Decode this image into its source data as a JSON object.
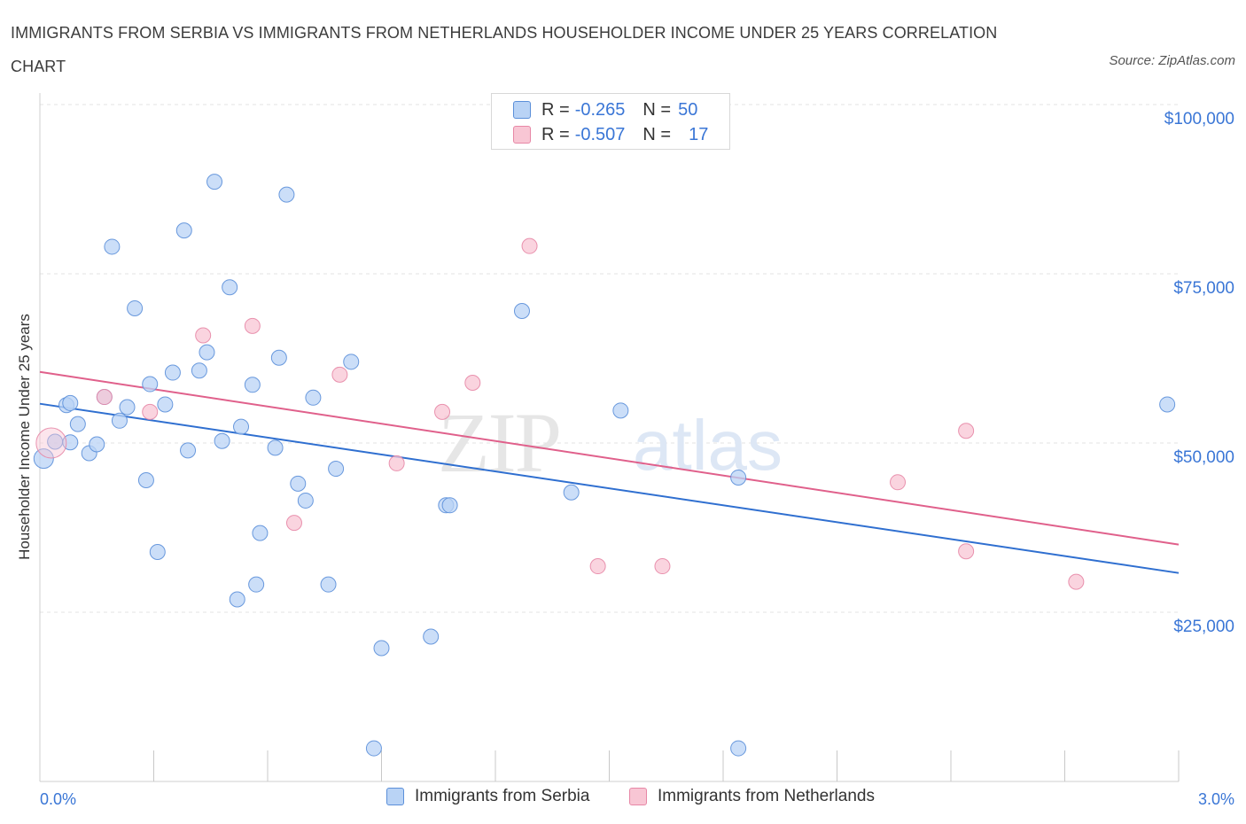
{
  "title": "IMMIGRANTS FROM SERBIA VS IMMIGRANTS FROM NETHERLANDS HOUSEHOLDER INCOME UNDER 25 YEARS CORRELATION CHART",
  "source": "Source: ZipAtlas.com",
  "watermark": {
    "zip": "ZIP",
    "atlas": "atlas"
  },
  "legend": {
    "r_label": "R =",
    "n_label": "N =",
    "serbia": {
      "r": "-0.265",
      "n": "50"
    },
    "netherlands": {
      "r": "-0.507",
      "n": "17"
    }
  },
  "colors": {
    "serbia_fill": "#b9d3f5",
    "serbia_stroke": "#5b8fd9",
    "serbia_line": "#2f6fd0",
    "netherlands_fill": "#f8c6d4",
    "netherlands_stroke": "#e787a6",
    "netherlands_line": "#e0608b",
    "tick_label": "#3a76d6"
  },
  "chart_data": {
    "type": "scatter",
    "title": "IMMIGRANTS FROM SERBIA VS IMMIGRANTS FROM NETHERLANDS HOUSEHOLDER INCOME UNDER 25 YEARS CORRELATION CHART",
    "xlabel": "",
    "ylabel": "Householder Income Under 25 years",
    "xlim": [
      0,
      3.0
    ],
    "ylim": [
      0,
      100000
    ],
    "x_tick_labels": [
      "0.0%",
      "3.0%"
    ],
    "y_ticks": [
      25000,
      50000,
      75000,
      100000
    ],
    "y_tick_labels": [
      "$25,000",
      "$50,000",
      "$75,000",
      "$100,000"
    ],
    "grid": true,
    "legend_position": "top-center",
    "series": [
      {
        "name": "Immigrants from Serbia",
        "points": [
          [
            0.01,
            47700
          ],
          [
            0.04,
            50200
          ],
          [
            0.07,
            55600
          ],
          [
            0.08,
            55900
          ],
          [
            0.08,
            50100
          ],
          [
            0.1,
            52800
          ],
          [
            0.13,
            48500
          ],
          [
            0.15,
            49800
          ],
          [
            0.17,
            56800
          ],
          [
            0.19,
            79000
          ],
          [
            0.21,
            53300
          ],
          [
            0.23,
            55300
          ],
          [
            0.25,
            69900
          ],
          [
            0.28,
            44500
          ],
          [
            0.29,
            58700
          ],
          [
            0.31,
            33900
          ],
          [
            0.33,
            55700
          ],
          [
            0.35,
            60400
          ],
          [
            0.38,
            81400
          ],
          [
            0.39,
            48900
          ],
          [
            0.42,
            60700
          ],
          [
            0.44,
            63400
          ],
          [
            0.46,
            88600
          ],
          [
            0.48,
            50300
          ],
          [
            0.5,
            73000
          ],
          [
            0.52,
            26900
          ],
          [
            0.53,
            52400
          ],
          [
            0.56,
            58600
          ],
          [
            0.57,
            29100
          ],
          [
            0.58,
            36700
          ],
          [
            0.62,
            49300
          ],
          [
            0.63,
            62600
          ],
          [
            0.65,
            86700
          ],
          [
            0.68,
            44000
          ],
          [
            0.7,
            41500
          ],
          [
            0.72,
            56700
          ],
          [
            0.76,
            29100
          ],
          [
            0.78,
            46200
          ],
          [
            0.82,
            62000
          ],
          [
            0.9,
            19700
          ],
          [
            1.03,
            21400
          ],
          [
            1.07,
            40800
          ],
          [
            1.08,
            40800
          ],
          [
            1.27,
            69500
          ],
          [
            1.4,
            42700
          ],
          [
            1.53,
            54800
          ],
          [
            0.88,
            4900
          ],
          [
            1.84,
            44900
          ],
          [
            1.84,
            4900
          ],
          [
            2.97,
            55700
          ]
        ]
      },
      {
        "name": "Immigrants from Netherlands",
        "points": [
          [
            0.03,
            50000
          ],
          [
            0.17,
            56800
          ],
          [
            0.29,
            54600
          ],
          [
            0.43,
            65900
          ],
          [
            0.56,
            67300
          ],
          [
            0.67,
            38200
          ],
          [
            0.79,
            60100
          ],
          [
            0.94,
            47000
          ],
          [
            1.06,
            54600
          ],
          [
            1.14,
            58900
          ],
          [
            1.29,
            79100
          ],
          [
            1.47,
            31800
          ],
          [
            1.64,
            31800
          ],
          [
            2.26,
            44200
          ],
          [
            2.44,
            34000
          ],
          [
            2.44,
            51800
          ],
          [
            2.73,
            29500
          ]
        ]
      }
    ],
    "trend_lines": [
      {
        "name": "Immigrants from Serbia",
        "x": [
          0.0,
          3.0
        ],
        "y": [
          55800,
          30800
        ]
      },
      {
        "name": "Immigrants from Netherlands",
        "x": [
          0.0,
          3.0
        ],
        "y": [
          60500,
          35000
        ]
      }
    ]
  }
}
